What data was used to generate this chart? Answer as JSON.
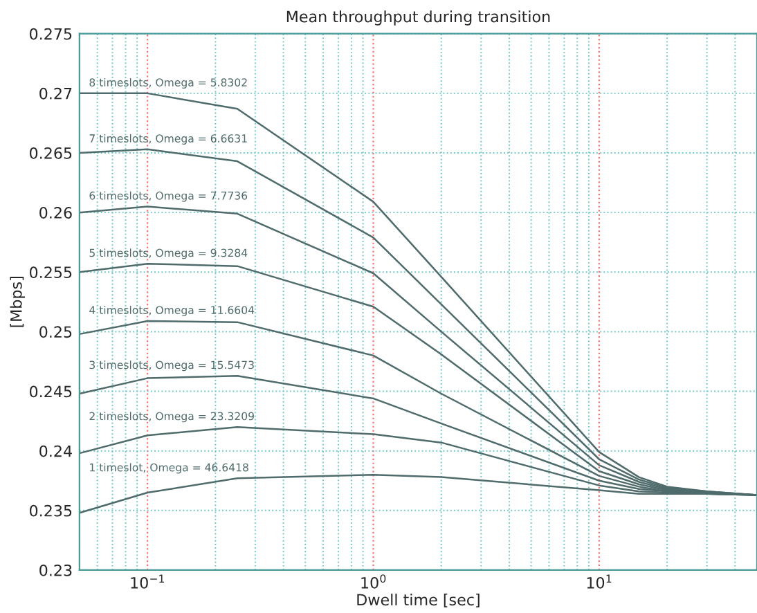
{
  "chart_data": {
    "type": "line",
    "title": "Mean throughput during transition",
    "xlabel": "Dwell time [sec]",
    "ylabel": "[Mbps]",
    "log": "x",
    "grid": true,
    "xlim": [
      0.05,
      50
    ],
    "ylim": [
      0.23,
      0.275
    ],
    "xticks": [
      {
        "value": 0.1,
        "label": "10$^{−1}$"
      },
      {
        "value": 1,
        "label": "10$^{0}$"
      },
      {
        "value": 10,
        "label": "10$^{1}$"
      }
    ],
    "yticks": [
      0.23,
      0.235,
      0.24,
      0.245,
      0.25,
      0.255,
      0.26,
      0.265,
      0.27,
      0.275
    ],
    "x": [
      0.05,
      0.1,
      0.25,
      1,
      2,
      10,
      15,
      20,
      30,
      50
    ],
    "series": [
      {
        "name": "8 timeslots, Omega = 5.8302",
        "color": "#4f6b6b",
        "values": [
          0.27,
          0.27,
          0.2687,
          0.2609,
          0.2546,
          0.2399,
          0.2378,
          0.237,
          0.2366,
          0.2363
        ]
      },
      {
        "name": "7 timeslots, Omega = 6.6631",
        "color": "#4f6b6b",
        "values": [
          0.265,
          0.2653,
          0.2643,
          0.2579,
          0.2523,
          0.2393,
          0.2376,
          0.2369,
          0.2366,
          0.2363
        ]
      },
      {
        "name": "6 timeslots, Omega = 7.7736",
        "color": "#4f6b6b",
        "values": [
          0.26,
          0.2605,
          0.2599,
          0.2549,
          0.25,
          0.2388,
          0.2374,
          0.2368,
          0.2365,
          0.2363
        ]
      },
      {
        "name": "5 timeslots, Omega = 9.3284",
        "color": "#4f6b6b",
        "values": [
          0.255,
          0.2557,
          0.2555,
          0.2521,
          0.2481,
          0.2383,
          0.2372,
          0.2367,
          0.2365,
          0.2363
        ]
      },
      {
        "name": "4 timeslots, Omega = 11.6604",
        "color": "#4f6b6b",
        "values": [
          0.2498,
          0.2509,
          0.2508,
          0.248,
          0.2448,
          0.2379,
          0.237,
          0.2366,
          0.2365,
          0.2363
        ]
      },
      {
        "name": "3 timeslots, Omega = 15.5473",
        "color": "#4f6b6b",
        "values": [
          0.2448,
          0.2461,
          0.2463,
          0.2444,
          0.2423,
          0.2375,
          0.2368,
          0.2366,
          0.2364,
          0.2363
        ]
      },
      {
        "name": "2 timeslots, Omega = 23.3209",
        "color": "#4f6b6b",
        "values": [
          0.2398,
          0.2413,
          0.242,
          0.2414,
          0.2407,
          0.2371,
          0.2366,
          0.2365,
          0.2364,
          0.2363
        ]
      },
      {
        "name": "1 timeslot, Omega = 46.6418",
        "color": "#4f6b6b",
        "values": [
          0.2348,
          0.2365,
          0.2377,
          0.238,
          0.2378,
          0.2367,
          0.2364,
          0.2364,
          0.2364,
          0.2363
        ]
      }
    ]
  }
}
